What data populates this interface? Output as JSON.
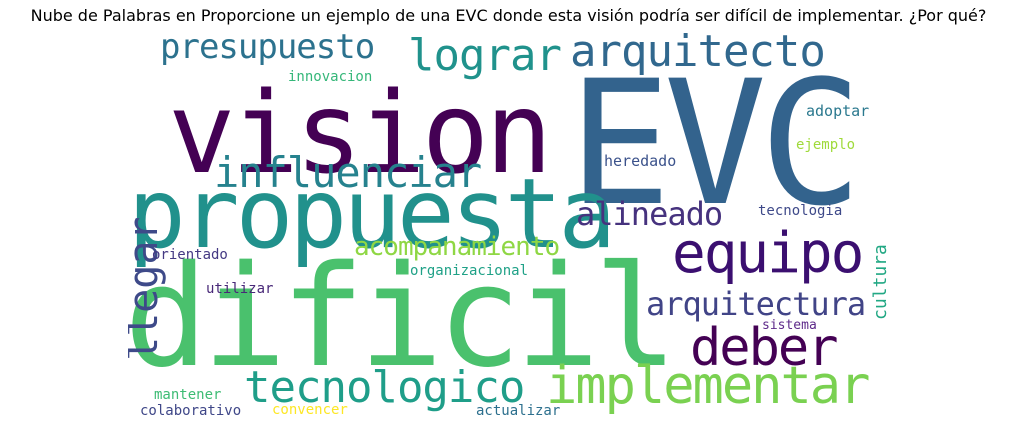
{
  "title": "Nube de Palabras en Proporcione un ejemplo de una EVC donde esta visión podría ser difícil de implementar. ¿Por qué?",
  "words": [
    {
      "text": "EVC",
      "color": "#33638d"
    },
    {
      "text": "dificil",
      "color": "#4ac16d"
    },
    {
      "text": "vision",
      "color": "#440154"
    },
    {
      "text": "propuesta",
      "color": "#21918c"
    },
    {
      "text": "implementar",
      "color": "#7ad151"
    },
    {
      "text": "equipo",
      "color": "#3b0f70"
    },
    {
      "text": "deber",
      "color": "#440154"
    },
    {
      "text": "tecnologico",
      "color": "#1f9e89"
    },
    {
      "text": "arquitecto",
      "color": "#31688e"
    },
    {
      "text": "lograr",
      "color": "#20928c"
    },
    {
      "text": "presupuesto",
      "color": "#2c728e"
    },
    {
      "text": "llegar",
      "color": "#3e4a89"
    },
    {
      "text": "influenciar",
      "color": "#26828e"
    },
    {
      "text": "alineado",
      "color": "#46327e"
    },
    {
      "text": "arquitectura",
      "color": "#414487"
    },
    {
      "text": "acompanamiento",
      "color": "#8fd744"
    },
    {
      "text": "cultura",
      "color": "#22a884"
    },
    {
      "text": "innovacion",
      "color": "#35b779"
    },
    {
      "text": "adoptar",
      "color": "#2a788e"
    },
    {
      "text": "ejemplo",
      "color": "#9fda3a"
    },
    {
      "text": "heredado",
      "color": "#3b528b"
    },
    {
      "text": "tecnologia",
      "color": "#3e4989"
    },
    {
      "text": "orientado",
      "color": "#443983"
    },
    {
      "text": "organizacional",
      "color": "#1fa187"
    },
    {
      "text": "utilizar",
      "color": "#482878"
    },
    {
      "text": "sistema",
      "color": "#5e2a8a"
    },
    {
      "text": "mantener",
      "color": "#3dbc74"
    },
    {
      "text": "colaborativo",
      "color": "#3f4788"
    },
    {
      "text": "convencer",
      "color": "#fde725"
    },
    {
      "text": "actualizar",
      "color": "#2d708e"
    }
  ]
}
